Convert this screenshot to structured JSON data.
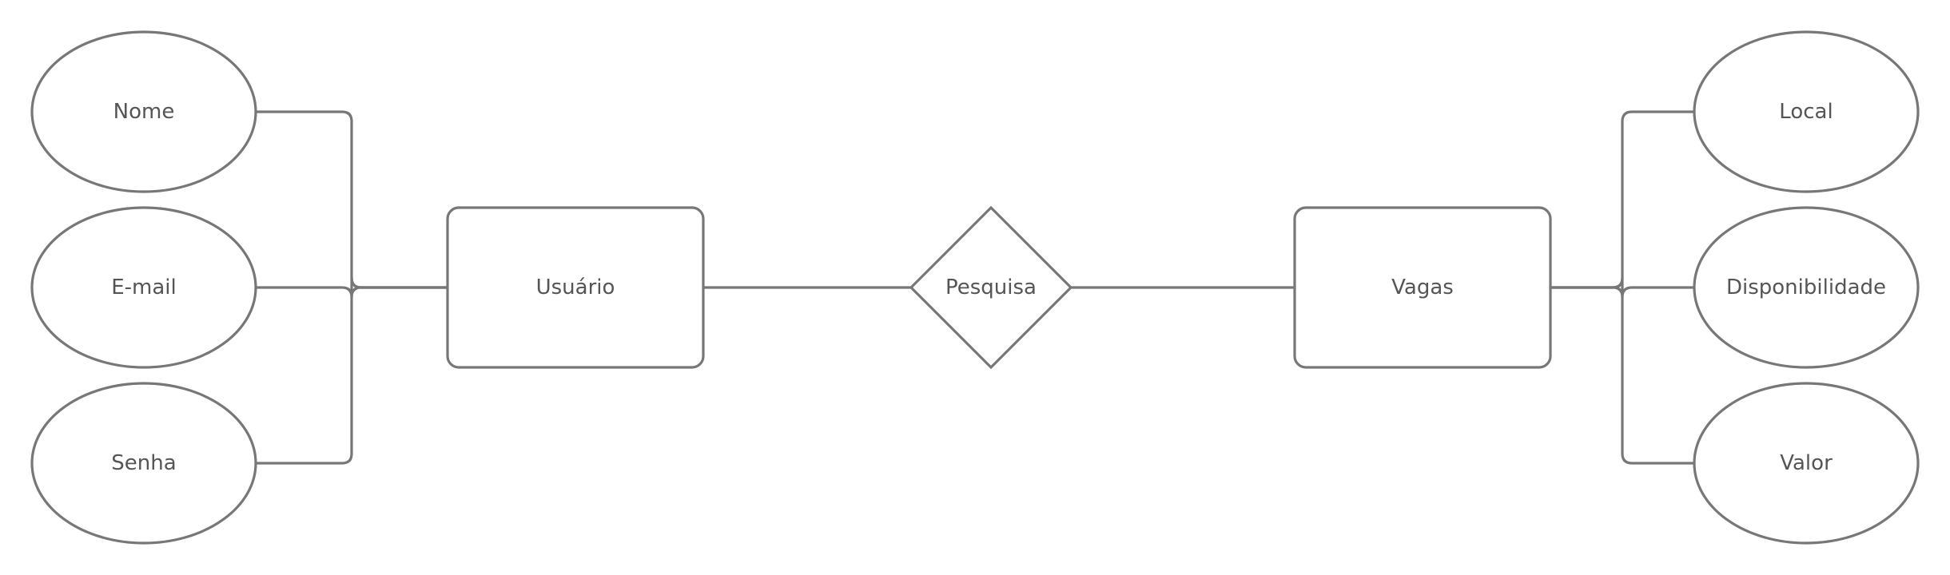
{
  "diagram": {
    "type": "entity-relationship",
    "line_color": "#777777",
    "text_color": "#555555",
    "entities": {
      "usuario": "Usuário",
      "vagas": "Vagas"
    },
    "relationship": {
      "pesquisa": "Pesquisa"
    },
    "attributes": {
      "usuario": {
        "nome": "Nome",
        "email": "E-mail",
        "senha": "Senha"
      },
      "vagas": {
        "local": "Local",
        "disponibilidade": "Disponibilidade",
        "valor": "Valor"
      }
    },
    "relations": [
      {
        "from": "Usuário",
        "to": "Pesquisa"
      },
      {
        "from": "Pesquisa",
        "to": "Vagas"
      },
      {
        "from": "Nome",
        "to": "Usuário"
      },
      {
        "from": "E-mail",
        "to": "Usuário"
      },
      {
        "from": "Senha",
        "to": "Usuário"
      },
      {
        "from": "Local",
        "to": "Vagas"
      },
      {
        "from": "Disponibilidade",
        "to": "Vagas"
      },
      {
        "from": "Valor",
        "to": "Vagas"
      }
    ]
  }
}
